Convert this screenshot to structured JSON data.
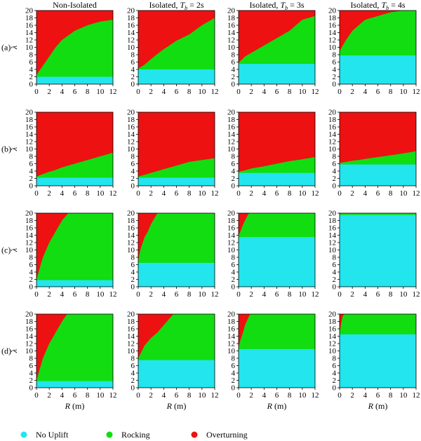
{
  "column_titles": [
    {
      "text": "Non-Isolated"
    },
    {
      "pre": "Isolated, ",
      "var": "T",
      "sub": "b",
      "post": " = 2s"
    },
    {
      "pre": "Isolated, ",
      "var": "T",
      "sub": "b",
      "post": " = 3s"
    },
    {
      "pre": "Isolated, ",
      "var": "T",
      "sub": "b",
      "post": " = 4s"
    }
  ],
  "row_labels": [
    "(a)",
    "(b)",
    "(c)",
    "(d)"
  ],
  "y_axis_label": "λ",
  "x_axis_label": {
    "var": "R",
    "unit": " (m)"
  },
  "x_ticks": [
    "0",
    "2",
    "4",
    "6",
    "8",
    "10",
    "12"
  ],
  "y_ticks": [
    "0",
    "2",
    "4",
    "6",
    "8",
    "10",
    "12",
    "14",
    "16",
    "18",
    "20"
  ],
  "colors": {
    "no_uplift": "#22e5ee",
    "rocking": "#11dd11",
    "overturning": "#ee1111"
  },
  "legend": [
    {
      "key": "no_uplift",
      "label": "No Uplift"
    },
    {
      "key": "rocking",
      "label": "Rocking"
    },
    {
      "key": "overturning",
      "label": "Overturning"
    }
  ],
  "chart_data": {
    "type": "heatmap",
    "xlabel": "R (m)",
    "ylabel": "λ",
    "xlim": [
      0,
      12
    ],
    "ylim": [
      0,
      20
    ],
    "regions": [
      "No Uplift",
      "Rocking",
      "Overturning"
    ],
    "panels": [
      {
        "row": "(a)",
        "col": "Non-Isolated",
        "no_uplift_max_lambda": 2.0,
        "overturning_boundary": {
          "R": [
            0,
            1,
            2,
            3,
            4,
            6,
            8,
            10,
            12
          ],
          "lambda": [
            2.5,
            5,
            7.5,
            10,
            12,
            14.5,
            16,
            17,
            17.5
          ]
        }
      },
      {
        "row": "(a)",
        "col": "Isolated, Tb = 2s",
        "no_uplift_max_lambda": 4.0,
        "overturning_boundary": {
          "R": [
            0,
            1,
            2,
            3,
            4,
            6,
            8,
            10,
            12
          ],
          "lambda": [
            4.2,
            5.3,
            6.8,
            8.2,
            9.5,
            11.8,
            13.5,
            16,
            18
          ]
        }
      },
      {
        "row": "(a)",
        "col": "Isolated, Tb = 3s",
        "no_uplift_max_lambda": 5.5,
        "overturning_boundary": {
          "R": [
            0,
            1,
            2,
            3,
            4,
            6,
            8,
            10,
            12
          ],
          "lambda": [
            5.8,
            7.5,
            8.5,
            9.5,
            10.5,
            12.5,
            14.5,
            17.5,
            18.5
          ]
        }
      },
      {
        "row": "(a)",
        "col": "Isolated, Tb = 4s",
        "no_uplift_max_lambda": 7.8,
        "overturning_boundary": {
          "R": [
            0,
            1,
            2,
            3,
            4,
            6,
            8,
            10,
            12
          ],
          "lambda": [
            9,
            12,
            14.5,
            16,
            17.5,
            18.5,
            19.5,
            20,
            20
          ]
        }
      },
      {
        "row": "(b)",
        "col": "Non-Isolated",
        "no_uplift_max_lambda": 2.2,
        "overturning_boundary": {
          "R": [
            0,
            1,
            2,
            3,
            4,
            6,
            8,
            10,
            12
          ],
          "lambda": [
            2.5,
            3.2,
            3.8,
            4.3,
            5,
            6,
            7,
            8,
            9
          ]
        }
      },
      {
        "row": "(b)",
        "col": "Isolated, Tb = 2s",
        "no_uplift_max_lambda": 2.2,
        "overturning_boundary": {
          "R": [
            0,
            1,
            2,
            3,
            4,
            6,
            8,
            10,
            12
          ],
          "lambda": [
            2.5,
            3,
            3.5,
            4,
            4.5,
            5.5,
            6.5,
            7,
            7.5
          ]
        }
      },
      {
        "row": "(b)",
        "col": "Isolated, Tb = 3s",
        "no_uplift_max_lambda": 3.5,
        "overturning_boundary": {
          "R": [
            0,
            1,
            2,
            3,
            4,
            6,
            8,
            10,
            12
          ],
          "lambda": [
            3.8,
            4.2,
            4.7,
            5,
            5.3,
            6,
            6.7,
            7.2,
            7.8
          ]
        }
      },
      {
        "row": "(b)",
        "col": "Isolated, Tb = 4s",
        "no_uplift_max_lambda": 5.8,
        "overturning_boundary": {
          "R": [
            0,
            1,
            2,
            3,
            4,
            6,
            8,
            10,
            12
          ],
          "lambda": [
            6.2,
            6.5,
            6.8,
            7,
            7.3,
            7.8,
            8.3,
            8.8,
            9.4
          ]
        }
      },
      {
        "row": "(c)",
        "col": "Non-Isolated",
        "no_uplift_max_lambda": 1.8,
        "overturning_boundary": {
          "R": [
            0,
            0.5,
            1,
            1.5,
            2,
            3,
            4,
            5
          ],
          "lambda": [
            2,
            5,
            8,
            10,
            12,
            15,
            18,
            20
          ]
        }
      },
      {
        "row": "(c)",
        "col": "Isolated, Tb = 2s",
        "no_uplift_max_lambda": 6.5,
        "overturning_boundary": {
          "R": [
            0,
            0.3,
            0.7,
            1,
            1.5,
            2,
            2.5,
            3
          ],
          "lambda": [
            7,
            10,
            12,
            13.5,
            15,
            17,
            18.5,
            20
          ]
        }
      },
      {
        "row": "(c)",
        "col": "Isolated, Tb = 3s",
        "no_uplift_max_lambda": 13.5,
        "overturning_boundary": {
          "R": [
            0,
            0.3,
            0.6,
            1,
            1.3,
            1.6
          ],
          "lambda": [
            14,
            15,
            16.5,
            18,
            19,
            20
          ]
        }
      },
      {
        "row": "(c)",
        "col": "Isolated, Tb = 4s",
        "no_uplift_max_lambda": 19.5,
        "overturning_boundary": {
          "R": [
            0,
            0.5
          ],
          "lambda": [
            19.8,
            20
          ]
        }
      },
      {
        "row": "(d)",
        "col": "Non-Isolated",
        "no_uplift_max_lambda": 1.8,
        "overturning_boundary": {
          "R": [
            0,
            0.5,
            1,
            1.5,
            2,
            3,
            4,
            4.8
          ],
          "lambda": [
            2,
            5,
            8,
            10,
            12,
            15,
            18,
            20
          ]
        }
      },
      {
        "row": "(d)",
        "col": "Isolated, Tb = 2s",
        "no_uplift_max_lambda": 7.5,
        "overturning_boundary": {
          "R": [
            0,
            1,
            2,
            3,
            4,
            5,
            5.5
          ],
          "lambda": [
            8,
            11.5,
            13.5,
            15,
            17,
            19,
            20
          ]
        }
      },
      {
        "row": "(d)",
        "col": "Isolated, Tb = 3s",
        "no_uplift_max_lambda": 10.5,
        "overturning_boundary": {
          "R": [
            0,
            0.3,
            0.7,
            1,
            1.4,
            1.8
          ],
          "lambda": [
            11,
            13,
            15,
            17,
            18.5,
            20
          ]
        }
      },
      {
        "row": "(d)",
        "col": "Isolated, Tb = 4s",
        "no_uplift_max_lambda": 14.5,
        "overturning_boundary": {
          "R": [
            0,
            0.2,
            0.4,
            0.6
          ],
          "lambda": [
            15,
            17,
            19,
            20
          ]
        }
      }
    ]
  }
}
